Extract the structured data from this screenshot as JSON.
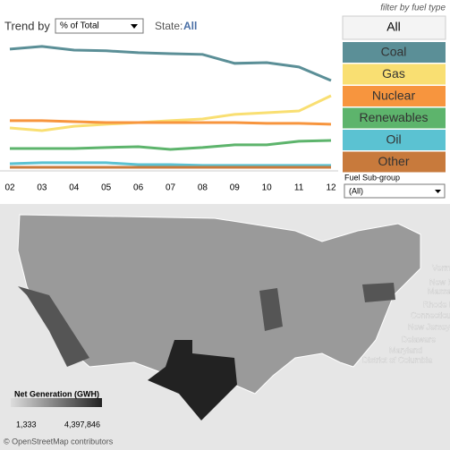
{
  "header": {
    "hint": "filter by fuel type",
    "trend_label": "Trend by",
    "trend_value": "% of Total",
    "state_label": "State:",
    "state_value": "All"
  },
  "chart_data": {
    "type": "line",
    "categories": [
      "02",
      "03",
      "04",
      "05",
      "06",
      "07",
      "08",
      "09",
      "10",
      "11",
      "12"
    ],
    "ylim": [
      0,
      55.5
    ],
    "series": [
      {
        "name": "Coal",
        "color": "#5b8f97",
        "values": [
          50,
          51.1,
          49.6,
          49.3,
          48.5,
          48.1,
          47.8,
          44.1,
          44.4,
          42.6,
          37
        ]
      },
      {
        "name": "Gas",
        "color": "#f9df72",
        "values": [
          17.4,
          16.3,
          18.1,
          18.9,
          19.6,
          20.4,
          21.1,
          23,
          23.7,
          24.4,
          30.7
        ]
      },
      {
        "name": "Nuclear",
        "color": "#f7953e",
        "values": [
          20.4,
          20.4,
          20,
          19.6,
          19.6,
          19.6,
          19.6,
          19.6,
          19.3,
          19.3,
          18.9
        ]
      },
      {
        "name": "Renewables",
        "color": "#5db46c",
        "values": [
          8.9,
          8.9,
          8.9,
          9.3,
          9.6,
          8.5,
          9.3,
          10.4,
          10.4,
          11.9,
          12.2
        ]
      },
      {
        "name": "Oil",
        "color": "#5bc2d2",
        "values": [
          2.6,
          3,
          3,
          3,
          2.2,
          2.2,
          1.9,
          1.9,
          1.9,
          1.9,
          1.9
        ]
      },
      {
        "name": "Other",
        "color": "#c87a3c",
        "values": [
          1.1,
          1.1,
          1.1,
          1.1,
          1.1,
          1.1,
          1.1,
          1.1,
          1.1,
          1.1,
          1.1
        ]
      }
    ]
  },
  "filter": {
    "all": "All",
    "subgroup_label": "Fuel Sub-group",
    "subgroup_value": "(All)"
  },
  "map": {
    "labels": [
      "Vermont",
      "New Hamp",
      "Massachus",
      "Rhode Island",
      "Connecticut",
      "New Jersey",
      "Delaware",
      "Maryland",
      "District of Columbia"
    ],
    "legend_title": "Net Generation (GWH)",
    "legend_min": "1,333",
    "legend_max": "4,397,846",
    "credit": "© OpenStreetMap contributors"
  }
}
